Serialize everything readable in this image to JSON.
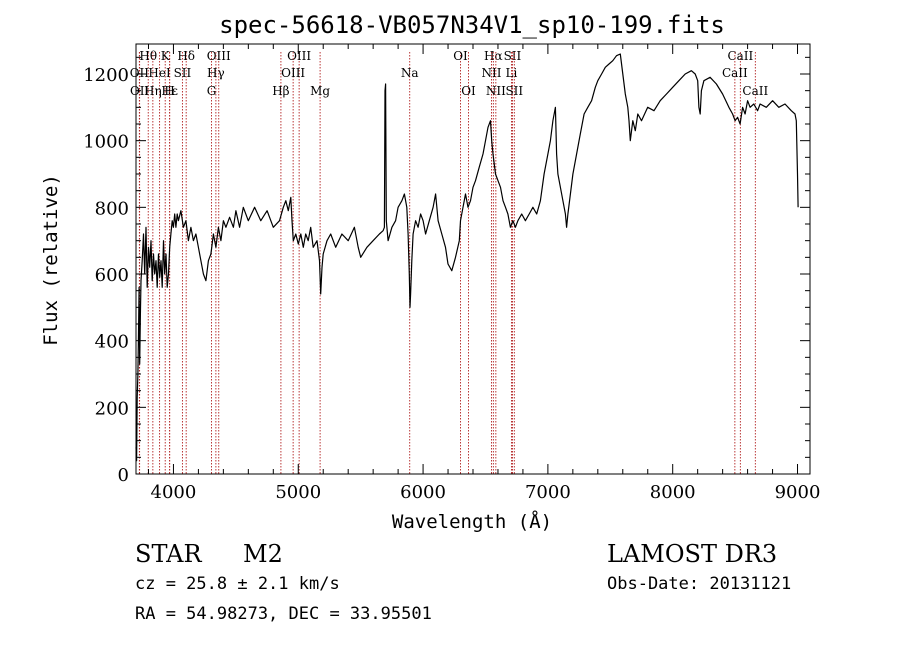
{
  "chart_data": {
    "type": "line",
    "title": "spec-56618-VB057N34V1_sp10-199.fits",
    "xlabel": "Wavelength (Å)",
    "ylabel": "Flux (relative)",
    "xlim": [
      3700,
      9100
    ],
    "ylim": [
      0,
      1290
    ],
    "x_ticks": [
      4000,
      5000,
      6000,
      7000,
      8000,
      9000
    ],
    "y_ticks": [
      0,
      200,
      400,
      600,
      800,
      1000,
      1200
    ],
    "grid": false,
    "series": [
      {
        "name": "spectrum",
        "color": "#000000",
        "points": [
          [
            3700,
            80
          ],
          [
            3705,
            40
          ],
          [
            3710,
            230
          ],
          [
            3715,
            300
          ],
          [
            3720,
            420
          ],
          [
            3725,
            560
          ],
          [
            3730,
            330
          ],
          [
            3735,
            480
          ],
          [
            3740,
            580
          ],
          [
            3750,
            640
          ],
          [
            3760,
            720
          ],
          [
            3770,
            600
          ],
          [
            3780,
            740
          ],
          [
            3790,
            560
          ],
          [
            3800,
            680
          ],
          [
            3810,
            620
          ],
          [
            3820,
            700
          ],
          [
            3830,
            580
          ],
          [
            3840,
            660
          ],
          [
            3850,
            600
          ],
          [
            3860,
            640
          ],
          [
            3870,
            560
          ],
          [
            3880,
            660
          ],
          [
            3890,
            590
          ],
          [
            3900,
            640
          ],
          [
            3910,
            560
          ],
          [
            3920,
            700
          ],
          [
            3930,
            600
          ],
          [
            3940,
            660
          ],
          [
            3950,
            560
          ],
          [
            3960,
            600
          ],
          [
            3970,
            680
          ],
          [
            3980,
            720
          ],
          [
            3990,
            760
          ],
          [
            4000,
            740
          ],
          [
            4010,
            780
          ],
          [
            4020,
            740
          ],
          [
            4030,
            780
          ],
          [
            4040,
            760
          ],
          [
            4060,
            790
          ],
          [
            4080,
            740
          ],
          [
            4100,
            760
          ],
          [
            4120,
            700
          ],
          [
            4140,
            740
          ],
          [
            4160,
            700
          ],
          [
            4180,
            720
          ],
          [
            4200,
            680
          ],
          [
            4220,
            640
          ],
          [
            4240,
            600
          ],
          [
            4260,
            580
          ],
          [
            4280,
            640
          ],
          [
            4300,
            660
          ],
          [
            4320,
            720
          ],
          [
            4340,
            680
          ],
          [
            4360,
            740
          ],
          [
            4380,
            700
          ],
          [
            4400,
            760
          ],
          [
            4420,
            740
          ],
          [
            4450,
            770
          ],
          [
            4480,
            740
          ],
          [
            4500,
            790
          ],
          [
            4530,
            740
          ],
          [
            4560,
            800
          ],
          [
            4600,
            760
          ],
          [
            4650,
            800
          ],
          [
            4700,
            760
          ],
          [
            4750,
            790
          ],
          [
            4800,
            740
          ],
          [
            4850,
            760
          ],
          [
            4880,
            800
          ],
          [
            4900,
            820
          ],
          [
            4920,
            790
          ],
          [
            4940,
            830
          ],
          [
            4950,
            760
          ],
          [
            4960,
            700
          ],
          [
            4980,
            720
          ],
          [
            5000,
            690
          ],
          [
            5020,
            720
          ],
          [
            5040,
            680
          ],
          [
            5060,
            720
          ],
          [
            5080,
            700
          ],
          [
            5100,
            740
          ],
          [
            5120,
            680
          ],
          [
            5150,
            700
          ],
          [
            5170,
            640
          ],
          [
            5180,
            540
          ],
          [
            5190,
            620
          ],
          [
            5200,
            660
          ],
          [
            5230,
            700
          ],
          [
            5260,
            720
          ],
          [
            5300,
            680
          ],
          [
            5350,
            720
          ],
          [
            5400,
            700
          ],
          [
            5450,
            740
          ],
          [
            5480,
            680
          ],
          [
            5500,
            650
          ],
          [
            5550,
            680
          ],
          [
            5600,
            700
          ],
          [
            5650,
            720
          ],
          [
            5680,
            730
          ],
          [
            5690,
            740
          ],
          [
            5695,
            1150
          ],
          [
            5700,
            1170
          ],
          [
            5705,
            760
          ],
          [
            5720,
            700
          ],
          [
            5750,
            740
          ],
          [
            5780,
            760
          ],
          [
            5800,
            800
          ],
          [
            5830,
            820
          ],
          [
            5850,
            840
          ],
          [
            5870,
            800
          ],
          [
            5880,
            720
          ],
          [
            5890,
            600
          ],
          [
            5895,
            500
          ],
          [
            5900,
            540
          ],
          [
            5910,
            640
          ],
          [
            5920,
            720
          ],
          [
            5940,
            760
          ],
          [
            5960,
            740
          ],
          [
            5980,
            780
          ],
          [
            6000,
            760
          ],
          [
            6020,
            720
          ],
          [
            6050,
            760
          ],
          [
            6080,
            800
          ],
          [
            6100,
            840
          ],
          [
            6120,
            760
          ],
          [
            6150,
            720
          ],
          [
            6180,
            680
          ],
          [
            6200,
            630
          ],
          [
            6230,
            610
          ],
          [
            6260,
            650
          ],
          [
            6290,
            700
          ],
          [
            6300,
            760
          ],
          [
            6320,
            800
          ],
          [
            6340,
            840
          ],
          [
            6360,
            800
          ],
          [
            6380,
            820
          ],
          [
            6400,
            860
          ],
          [
            6420,
            880
          ],
          [
            6450,
            920
          ],
          [
            6480,
            960
          ],
          [
            6500,
            1000
          ],
          [
            6520,
            1040
          ],
          [
            6540,
            1060
          ],
          [
            6550,
            1000
          ],
          [
            6560,
            960
          ],
          [
            6580,
            900
          ],
          [
            6600,
            880
          ],
          [
            6620,
            860
          ],
          [
            6640,
            820
          ],
          [
            6660,
            800
          ],
          [
            6680,
            780
          ],
          [
            6700,
            740
          ],
          [
            6720,
            760
          ],
          [
            6740,
            740
          ],
          [
            6760,
            760
          ],
          [
            6790,
            780
          ],
          [
            6820,
            760
          ],
          [
            6850,
            780
          ],
          [
            6880,
            800
          ],
          [
            6910,
            780
          ],
          [
            6940,
            820
          ],
          [
            6970,
            900
          ],
          [
            7000,
            960
          ],
          [
            7020,
            1000
          ],
          [
            7040,
            1060
          ],
          [
            7060,
            1100
          ],
          [
            7070,
            960
          ],
          [
            7080,
            900
          ],
          [
            7100,
            860
          ],
          [
            7120,
            820
          ],
          [
            7140,
            780
          ],
          [
            7150,
            740
          ],
          [
            7160,
            780
          ],
          [
            7180,
            840
          ],
          [
            7200,
            900
          ],
          [
            7230,
            960
          ],
          [
            7260,
            1020
          ],
          [
            7290,
            1080
          ],
          [
            7320,
            1100
          ],
          [
            7350,
            1120
          ],
          [
            7380,
            1160
          ],
          [
            7400,
            1180
          ],
          [
            7430,
            1200
          ],
          [
            7460,
            1220
          ],
          [
            7490,
            1230
          ],
          [
            7520,
            1240
          ],
          [
            7550,
            1255
          ],
          [
            7580,
            1260
          ],
          [
            7600,
            1200
          ],
          [
            7620,
            1140
          ],
          [
            7640,
            1100
          ],
          [
            7650,
            1060
          ],
          [
            7660,
            1000
          ],
          [
            7680,
            1060
          ],
          [
            7700,
            1030
          ],
          [
            7720,
            1080
          ],
          [
            7750,
            1060
          ],
          [
            7800,
            1100
          ],
          [
            7850,
            1090
          ],
          [
            7900,
            1120
          ],
          [
            7950,
            1140
          ],
          [
            8000,
            1160
          ],
          [
            8050,
            1180
          ],
          [
            8100,
            1200
          ],
          [
            8150,
            1210
          ],
          [
            8180,
            1200
          ],
          [
            8200,
            1180
          ],
          [
            8210,
            1100
          ],
          [
            8220,
            1080
          ],
          [
            8230,
            1150
          ],
          [
            8250,
            1180
          ],
          [
            8300,
            1190
          ],
          [
            8350,
            1170
          ],
          [
            8400,
            1140
          ],
          [
            8450,
            1100
          ],
          [
            8480,
            1080
          ],
          [
            8500,
            1060
          ],
          [
            8520,
            1070
          ],
          [
            8540,
            1050
          ],
          [
            8560,
            1100
          ],
          [
            8580,
            1080
          ],
          [
            8600,
            1120
          ],
          [
            8620,
            1100
          ],
          [
            8650,
            1110
          ],
          [
            8680,
            1090
          ],
          [
            8700,
            1110
          ],
          [
            8750,
            1100
          ],
          [
            8800,
            1120
          ],
          [
            8850,
            1100
          ],
          [
            8900,
            1110
          ],
          [
            8950,
            1090
          ],
          [
            8980,
            1080
          ],
          [
            8990,
            1060
          ],
          [
            9000,
            900
          ],
          [
            9005,
            800
          ]
        ]
      }
    ],
    "line_markers": {
      "color": "#b22222",
      "lines": [
        {
          "label": "Hθ",
          "x": 3798,
          "row": 0
        },
        {
          "label": "K",
          "x": 3934,
          "row": 0
        },
        {
          "label": "Hδ",
          "x": 4102,
          "row": 0
        },
        {
          "label": "OIII",
          "x": 4363,
          "row": 0
        },
        {
          "label": "OIII",
          "x": 5007,
          "row": 0
        },
        {
          "label": "OI",
          "x": 6300,
          "row": 0
        },
        {
          "label": "Hα",
          "x": 6563,
          "row": 0
        },
        {
          "label": "SII",
          "x": 6716,
          "row": 0
        },
        {
          "label": "CaII",
          "x": 8542,
          "row": 0
        },
        {
          "label": "OII",
          "x": 3727,
          "row": 1
        },
        {
          "label": "HeI",
          "x": 3889,
          "row": 1
        },
        {
          "label": "SII",
          "x": 4072,
          "row": 1
        },
        {
          "label": "Hγ",
          "x": 4340,
          "row": 1
        },
        {
          "label": "OIII",
          "x": 4959,
          "row": 1
        },
        {
          "label": "NII",
          "x": 6548,
          "row": 1
        },
        {
          "label": "Li",
          "x": 6708,
          "row": 1
        },
        {
          "label": "CaII",
          "x": 8498,
          "row": 1
        },
        {
          "label": "OII",
          "x": 3729,
          "row": 2
        },
        {
          "label": "Hε",
          "x": 3970,
          "row": 2
        },
        {
          "label": "Hη",
          "x": 3835,
          "row": 2
        },
        {
          "label": "H",
          "x": 3969,
          "row": 2
        },
        {
          "label": "G",
          "x": 4305,
          "row": 2
        },
        {
          "label": "Hβ",
          "x": 4861,
          "row": 2
        },
        {
          "label": "Mg",
          "x": 5175,
          "row": 2
        },
        {
          "label": "Na",
          "x": 5893,
          "row": 1
        },
        {
          "label": "OI",
          "x": 6364,
          "row": 2
        },
        {
          "label": "NII",
          "x": 6583,
          "row": 2
        },
        {
          "label": "SII",
          "x": 6731,
          "row": 2
        },
        {
          "label": "CaII",
          "x": 8662,
          "row": 2
        }
      ]
    }
  },
  "info": {
    "class_label": "STAR",
    "subclass_label": "M2",
    "survey": "LAMOST DR3",
    "redshift": "cz = 25.8 ± 2.1 km/s",
    "obs_date": "Obs-Date: 20131121",
    "coords": "RA =  54.98273, DEC =  33.95501"
  }
}
